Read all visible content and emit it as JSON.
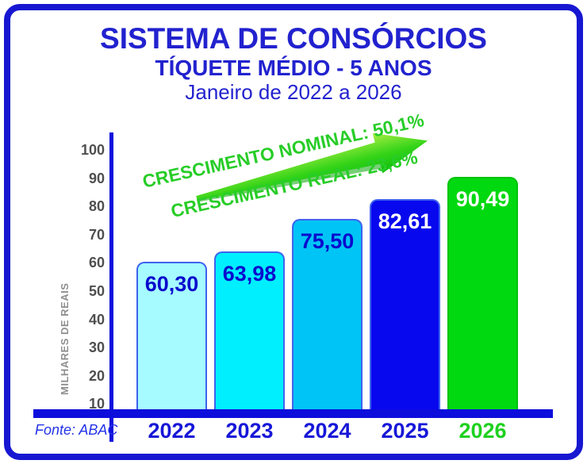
{
  "header": {
    "line1": "SISTEMA DE CONSÓRCIOS",
    "line2": "TÍQUETE MÉDIO - 5 ANOS",
    "line3": "Janeiro de 2022 a 2026"
  },
  "source": "Fonte: ABAC",
  "chart_data": {
    "type": "bar",
    "title": "SISTEMA DE CONSÓRCIOS — TÍQUETE MÉDIO - 5 ANOS — Janeiro de 2022 a 2026",
    "categories": [
      "2022",
      "2023",
      "2024",
      "2025",
      "2026"
    ],
    "values": [
      60.3,
      63.98,
      75.5,
      82.61,
      90.49
    ],
    "value_labels": [
      "60,30",
      "63,98",
      "75,50",
      "82,61",
      "90,49"
    ],
    "bar_colors": [
      "#A5FBFF",
      "#00EFFF",
      "#00C4F6",
      "#0808EF",
      "#00D90F"
    ],
    "bar_border_colors": [
      "#3E63ED",
      "#3E63ED",
      "#3E63ED",
      "#3E63ED",
      "#00C20C"
    ],
    "value_label_colors": [
      "#0A0ACD",
      "#0A0ACD",
      "#0A0ACD",
      "#FFFFFF",
      "#FFFFFF"
    ],
    "xtick_label_colors": [
      "#1717D8",
      "#1717D8",
      "#1717D8",
      "#1717D8",
      "#1FD11F"
    ],
    "ylabel": "MILHARES DE REAIS",
    "xlabel": "",
    "yticks": [
      10,
      20,
      30,
      40,
      50,
      60,
      70,
      80,
      90,
      100
    ],
    "ylim": [
      6.5,
      100
    ],
    "grid": false,
    "legend": false,
    "annotations": {
      "nominal": "CRESCIMENTO NOMINAL: 50,1%",
      "real": "CRESCIMENTO REAL: 23,6%"
    },
    "annotation_color": "#28CD28",
    "arrow_color": "#2ED318",
    "axis_color": "#0E0EDC",
    "title_color": "#2222CF"
  }
}
